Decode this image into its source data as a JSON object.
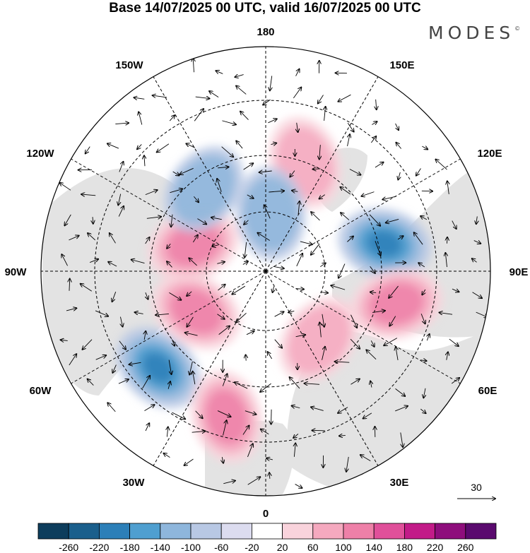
{
  "title": "Base 14/07/2025 00 UTC, valid 16/07/2025 00 UTC",
  "logo": "MODES",
  "logo_mark": "©",
  "longitude_labels": {
    "top": "180",
    "bottom": "0",
    "left": "90W",
    "right": "90E",
    "upper_left_1": "150W",
    "upper_left_2": "120W",
    "upper_right_1": "150E",
    "upper_right_2": "120E",
    "lower_left_1": "60W",
    "lower_left_2": "30W",
    "lower_right_1": "60E",
    "lower_right_2": "30E"
  },
  "reference_vector": {
    "label": "30",
    "magnitude": 30
  },
  "colorbar": {
    "ticks": [
      "-260",
      "-220",
      "-180",
      "-140",
      "-100",
      "-60",
      "-20",
      "20",
      "60",
      "100",
      "140",
      "180",
      "220",
      "260"
    ],
    "colors": [
      "#0d3d5c",
      "#1a5f8c",
      "#2c7fb8",
      "#4f9fd0",
      "#8eb6dc",
      "#b8c8e4",
      "#dcdcef",
      "#ffffff",
      "#f9d3dc",
      "#f5a9bf",
      "#ee80a8",
      "#e0509a",
      "#c21b88",
      "#8e0e7c",
      "#5a0a6e"
    ]
  },
  "anomaly_centers": [
    {
      "label": "negative",
      "lat": 52,
      "lon": 103,
      "value": -200
    },
    {
      "label": "positive",
      "lat": 48,
      "lon": 76,
      "value": 120
    },
    {
      "label": "negative",
      "lat": 45,
      "lon": 312,
      "value": -200
    },
    {
      "label": "positive",
      "lat": 43,
      "lon": 345,
      "value": 140
    },
    {
      "label": "positive",
      "lat": 63,
      "lon": 38,
      "value": 100
    },
    {
      "label": "positive",
      "lat": 66,
      "lon": 250,
      "value": 140
    },
    {
      "label": "positive",
      "lat": 54,
      "lon": 160,
      "value": 100
    },
    {
      "label": "negative",
      "lat": 58,
      "lon": 217,
      "value": -100
    },
    {
      "label": "negative",
      "lat": 72,
      "lon": 175,
      "value": -100
    },
    {
      "label": "positive",
      "lat": 65,
      "lon": 300,
      "value": 120
    }
  ]
}
